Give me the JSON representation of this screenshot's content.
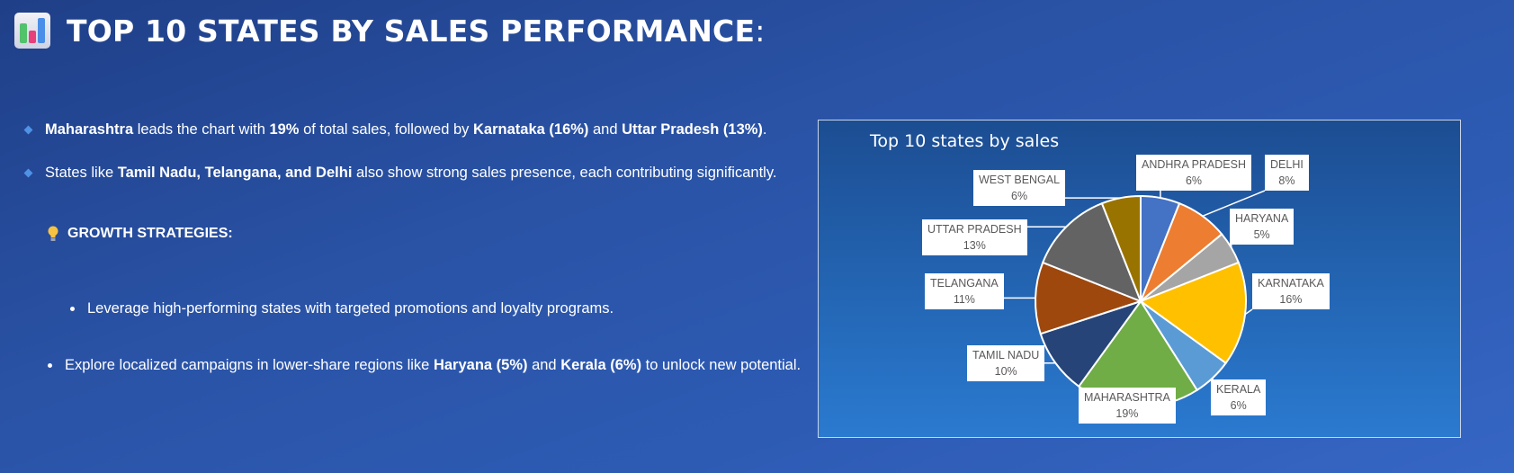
{
  "header": {
    "title": "TOP 10 STATES BY SALES PERFORMANCE",
    "colon": ":"
  },
  "insights": [
    {
      "parts": [
        {
          "t": "Maharashtra",
          "b": true
        },
        {
          "t": " leads the chart with ",
          "b": false
        },
        {
          "t": "19%",
          "b": true
        },
        {
          "t": " of total sales, followed by ",
          "b": false
        },
        {
          "t": "Karnataka (16%)",
          "b": true
        },
        {
          "t": " and ",
          "b": false
        },
        {
          "t": "Uttar Pradesh (13%)",
          "b": true
        },
        {
          "t": ".",
          "b": false
        }
      ]
    },
    {
      "parts": [
        {
          "t": "States like ",
          "b": false
        },
        {
          "t": "Tamil Nadu, Telangana, and Delhi",
          "b": true
        },
        {
          "t": " also show strong sales presence, each contributing significantly.",
          "b": false
        }
      ]
    }
  ],
  "growth_heading": "GROWTH STRATEGIES:",
  "strategies": [
    {
      "parts": [
        {
          "t": "Leverage high-performing states with targeted promotions and loyalty programs.",
          "b": false
        }
      ]
    },
    {
      "parts": [
        {
          "t": "Explore localized campaigns in lower-share regions like ",
          "b": false
        },
        {
          "t": "Haryana (5%)",
          "b": true
        },
        {
          "t": " and ",
          "b": false
        },
        {
          "t": "Kerala (6%)",
          "b": true
        },
        {
          "t": " to unlock new potential.",
          "b": false
        }
      ]
    }
  ],
  "colors": {
    "accent_diamond": "#4f92e6"
  },
  "chart_data": {
    "type": "pie",
    "title": "Top 10 states by  sales",
    "categories": [
      "ANDHRA PRADESH",
      "DELHI",
      "HARYANA",
      "KARNATAKA",
      "KERALA",
      "MAHARASHTRA",
      "TAMIL NADU",
      "TELANGANA",
      "UTTAR PRADESH",
      "WEST BENGAL"
    ],
    "values": [
      6,
      8,
      5,
      16,
      6,
      19,
      10,
      11,
      13,
      6
    ],
    "value_labels": [
      "6%",
      "8%",
      "5%",
      "16%",
      "6%",
      "19%",
      "10%",
      "11%",
      "13%",
      "6%"
    ],
    "colors": [
      "#4472c4",
      "#ed7d31",
      "#a5a5a5",
      "#ffc000",
      "#5b9bd5",
      "#70ad47",
      "#264478",
      "#9e480e",
      "#636363",
      "#997300"
    ],
    "legend": "none"
  }
}
